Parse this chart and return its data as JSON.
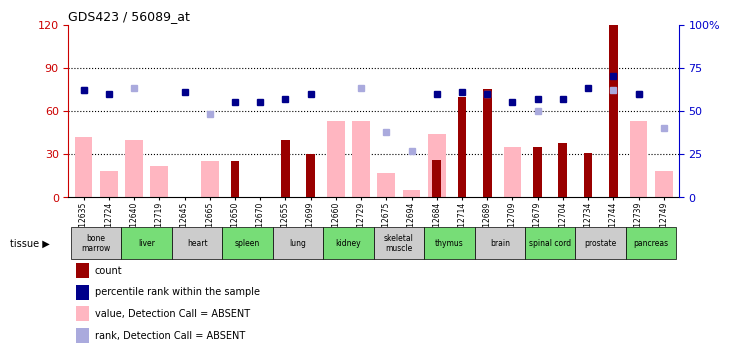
{
  "title": "GDS423 / 56089_at",
  "samples": [
    "GSM12635",
    "GSM12724",
    "GSM12640",
    "GSM12719",
    "GSM12645",
    "GSM12665",
    "GSM12650",
    "GSM12670",
    "GSM12655",
    "GSM12699",
    "GSM12660",
    "GSM12729",
    "GSM12675",
    "GSM12694",
    "GSM12684",
    "GSM12714",
    "GSM12689",
    "GSM12709",
    "GSM12679",
    "GSM12704",
    "GSM12734",
    "GSM12744",
    "GSM12739",
    "GSM12749"
  ],
  "tissues": [
    {
      "name": "bone\nmarrow",
      "start": 0,
      "end": 2,
      "color": "#cccccc"
    },
    {
      "name": "liver",
      "start": 2,
      "end": 4,
      "color": "#77dd77"
    },
    {
      "name": "heart",
      "start": 4,
      "end": 6,
      "color": "#cccccc"
    },
    {
      "name": "spleen",
      "start": 6,
      "end": 8,
      "color": "#77dd77"
    },
    {
      "name": "lung",
      "start": 8,
      "end": 10,
      "color": "#cccccc"
    },
    {
      "name": "kidney",
      "start": 10,
      "end": 12,
      "color": "#77dd77"
    },
    {
      "name": "skeletal\nmuscle",
      "start": 12,
      "end": 14,
      "color": "#cccccc"
    },
    {
      "name": "thymus",
      "start": 14,
      "end": 16,
      "color": "#77dd77"
    },
    {
      "name": "brain",
      "start": 16,
      "end": 18,
      "color": "#cccccc"
    },
    {
      "name": "spinal cord",
      "start": 18,
      "end": 20,
      "color": "#77dd77"
    },
    {
      "name": "prostate",
      "start": 20,
      "end": 22,
      "color": "#cccccc"
    },
    {
      "name": "pancreas",
      "start": 22,
      "end": 24,
      "color": "#77dd77"
    }
  ],
  "count_values": [
    null,
    null,
    null,
    null,
    null,
    null,
    25,
    null,
    40,
    30,
    null,
    null,
    null,
    null,
    26,
    70,
    75,
    null,
    35,
    38,
    31,
    120,
    null,
    null
  ],
  "absent_value": [
    42,
    18,
    40,
    22,
    0,
    25,
    null,
    null,
    null,
    null,
    53,
    53,
    17,
    5,
    44,
    null,
    null,
    35,
    null,
    null,
    null,
    null,
    53,
    18
  ],
  "percentile_rank": [
    62,
    60,
    null,
    null,
    61,
    null,
    55,
    55,
    57,
    60,
    null,
    null,
    null,
    null,
    60,
    61,
    60,
    55,
    57,
    57,
    63,
    70,
    60,
    null
  ],
  "absent_rank": [
    62,
    null,
    63,
    null,
    null,
    48,
    null,
    null,
    null,
    null,
    null,
    63,
    38,
    27,
    null,
    null,
    60,
    null,
    50,
    null,
    null,
    62,
    60,
    40
  ],
  "ylim_left": [
    0,
    120
  ],
  "ylim_right": [
    0,
    100
  ],
  "yticks_left": [
    0,
    30,
    60,
    90,
    120
  ],
  "yticks_right": [
    0,
    25,
    50,
    75,
    100
  ],
  "bar_color_dark": "#990000",
  "bar_color_absent": "#ffb6c1",
  "dot_color_rank": "#00008b",
  "dot_color_absent_rank": "#aaaadd",
  "axis_label_color_left": "#cc0000",
  "axis_label_color_right": "#0000cc",
  "dotted_line_values": [
    30,
    60,
    90
  ],
  "legend_items": [
    {
      "label": "count",
      "color": "#990000",
      "marker": "s"
    },
    {
      "label": "percentile rank within the sample",
      "color": "#00008b",
      "marker": "s"
    },
    {
      "label": "value, Detection Call = ABSENT",
      "color": "#ffb6c1",
      "marker": "s"
    },
    {
      "label": "rank, Detection Call = ABSENT",
      "color": "#aaaadd",
      "marker": "s"
    }
  ]
}
